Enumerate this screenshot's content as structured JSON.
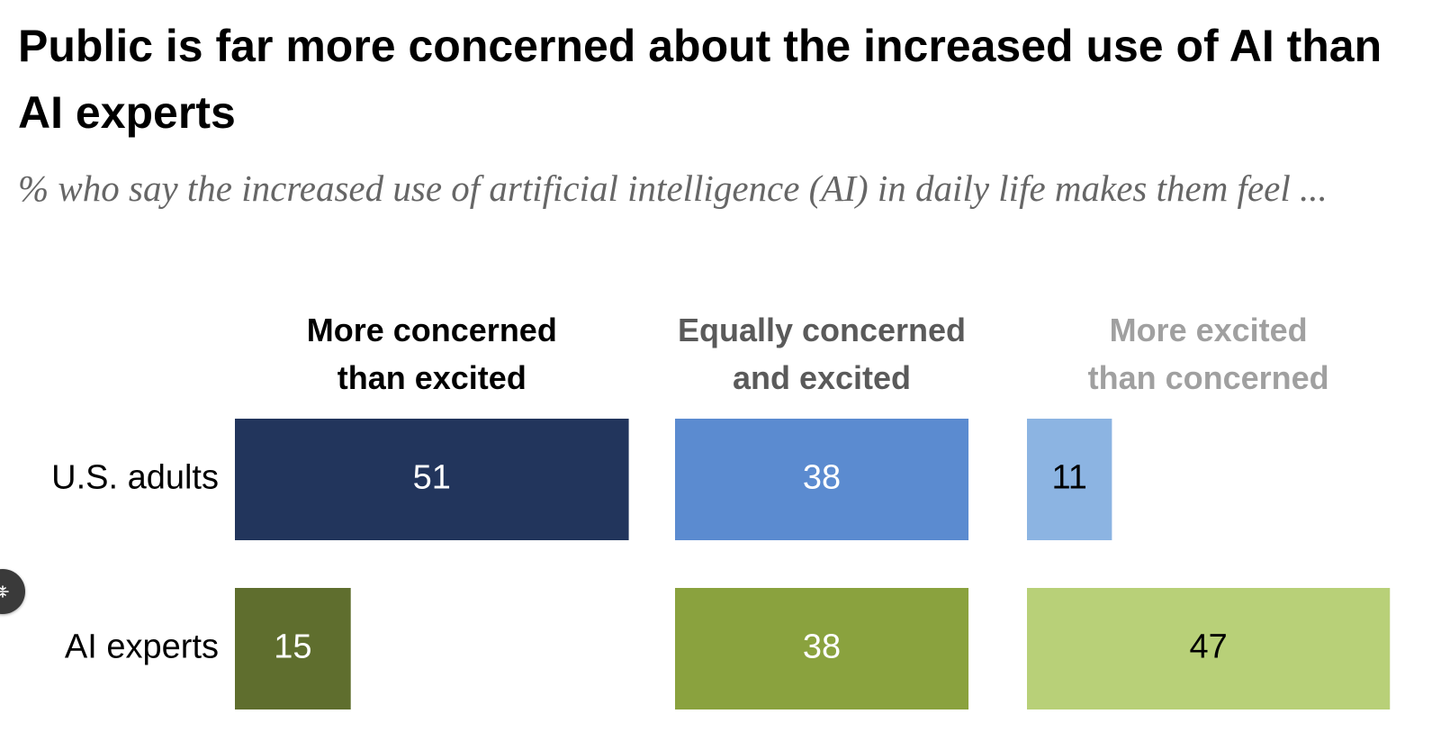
{
  "title": "Public is far more concerned about the increased use of AI than AI experts",
  "subtitle": "% who say the increased use of artificial intelligence (AI) in daily life makes them feel ...",
  "chart_data": {
    "type": "bar",
    "orientation": "horizontal",
    "layout": "small-multiples",
    "categories": [
      "U.S. adults",
      "AI experts"
    ],
    "series": [
      {
        "name": "More concerned than excited",
        "header_lines": [
          "More concerned",
          "than excited"
        ],
        "values": [
          51,
          15
        ]
      },
      {
        "name": "Equally concerned and excited",
        "header_lines": [
          "Equally concerned",
          "and excited"
        ],
        "values": [
          38,
          38
        ]
      },
      {
        "name": "More excited than concerned",
        "header_lines": [
          "More excited",
          "than concerned"
        ],
        "values": [
          11,
          47
        ]
      }
    ],
    "colors": [
      [
        "#22355c",
        "#5f6e2e"
      ],
      [
        "#5b8bd0",
        "#8aa23e"
      ],
      [
        "#8cb4e2",
        "#b8d078"
      ]
    ],
    "label_colors": [
      [
        "#ffffff",
        "#ffffff"
      ],
      [
        "#ffffff",
        "#ffffff"
      ],
      [
        "#000000",
        "#000000"
      ]
    ],
    "header_colors": [
      "#000000",
      "#5a5a5a",
      "#a0a0a0"
    ],
    "xlim": [
      0,
      100
    ]
  },
  "controls": {
    "nav_icon": "arrows-collapse-icon"
  }
}
